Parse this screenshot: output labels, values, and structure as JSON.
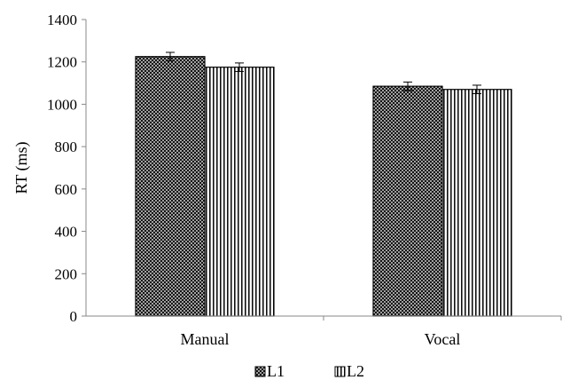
{
  "chart_data": {
    "type": "bar",
    "title": "",
    "xlabel": "",
    "ylabel": "RT (ms)",
    "ylim": [
      0,
      1400
    ],
    "yticks": [
      0,
      200,
      400,
      600,
      800,
      1000,
      1200,
      1400
    ],
    "grid": false,
    "legend_position": "bottom",
    "categories": [
      "Manual",
      "Vocal"
    ],
    "series": [
      {
        "name": "L1",
        "values": [
          1225,
          1085
        ],
        "errors": [
          20,
          20
        ],
        "pattern": "crosshatch"
      },
      {
        "name": "L2",
        "values": [
          1175,
          1070
        ],
        "errors": [
          20,
          20
        ],
        "pattern": "vertical-stripes"
      }
    ]
  }
}
